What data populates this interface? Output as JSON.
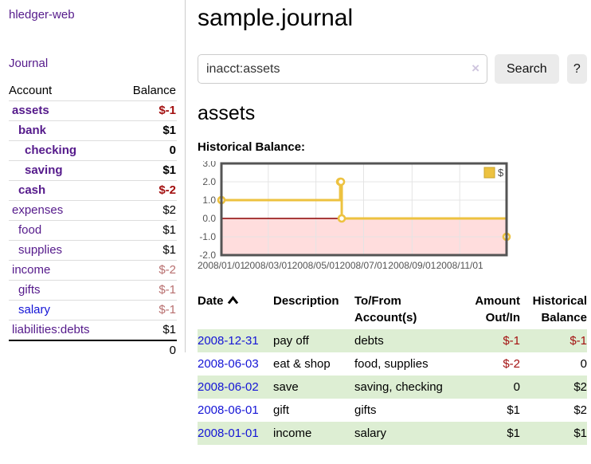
{
  "app": {
    "brand": "hledger-web",
    "nav_journal": "Journal"
  },
  "sidebar": {
    "headers": {
      "account": "Account",
      "balance": "Balance"
    },
    "accounts": [
      {
        "name": "assets",
        "level": 0,
        "bold": true,
        "balance": "$-1",
        "balance_style": "neg-strong",
        "link_color": "purple"
      },
      {
        "name": "bank",
        "level": 1,
        "bold": true,
        "balance": "$1",
        "balance_style": "pos",
        "link_color": "purple"
      },
      {
        "name": "checking",
        "level": 2,
        "bold": true,
        "balance": "0",
        "balance_style": "pos",
        "link_color": "purple"
      },
      {
        "name": "saving",
        "level": 2,
        "bold": true,
        "balance": "$1",
        "balance_style": "pos",
        "link_color": "purple"
      },
      {
        "name": "cash",
        "level": 1,
        "bold": true,
        "balance": "$-2",
        "balance_style": "neg-strong",
        "link_color": "purple"
      },
      {
        "name": "expenses",
        "level": 0,
        "bold": false,
        "balance": "$2",
        "balance_style": "pos",
        "link_color": "purple"
      },
      {
        "name": "food",
        "level": 1,
        "bold": false,
        "balance": "$1",
        "balance_style": "pos",
        "link_color": "purple"
      },
      {
        "name": "supplies",
        "level": 1,
        "bold": false,
        "balance": "$1",
        "balance_style": "pos",
        "link_color": "purple"
      },
      {
        "name": "income",
        "level": 0,
        "bold": false,
        "balance": "$-2",
        "balance_style": "neg-soft",
        "link_color": "purple"
      },
      {
        "name": "gifts",
        "level": 1,
        "bold": false,
        "balance": "$-1",
        "balance_style": "neg-soft",
        "link_color": "purple"
      },
      {
        "name": "salary",
        "level": 1,
        "bold": false,
        "balance": "$-1",
        "balance_style": "neg-soft",
        "link_color": "blue"
      },
      {
        "name": "liabilities:debts",
        "level": 0,
        "bold": false,
        "balance": "$1",
        "balance_style": "pos",
        "link_color": "purple"
      }
    ],
    "total": "0"
  },
  "header": {
    "title": "sample.journal"
  },
  "search": {
    "value": "inacct:assets",
    "clear_icon": "×",
    "button_label": "Search",
    "help_label": "?"
  },
  "account_page": {
    "heading": "assets",
    "chart_label": "Historical Balance:"
  },
  "chart_data": {
    "type": "line",
    "step": true,
    "title": "Historical Balance of assets",
    "series": [
      {
        "name": "$",
        "color": "#edc240",
        "points": [
          [
            "2008-01-01",
            1
          ],
          [
            "2008-06-01",
            2
          ],
          [
            "2008-06-02",
            2
          ],
          [
            "2008-06-03",
            0
          ],
          [
            "2008-12-31",
            -1
          ]
        ]
      }
    ],
    "xlim": [
      "2008-01-01",
      "2008-12-31"
    ],
    "ylim": [
      -2,
      3
    ],
    "x_ticks": [
      "2008/01/01",
      "2008/03/01",
      "2008/05/01",
      "2008/07/01",
      "2008/09/01",
      "2008/11/01"
    ],
    "y_ticks": [
      3.0,
      2.0,
      1.0,
      0.0,
      -1.0,
      -2.0
    ],
    "grid": true,
    "negative_region_color": "#ffdddd",
    "zero_line_color": "#8b0000",
    "gridline_color": "#e4e4e4",
    "border_color": "#545454",
    "axis_text_color": "#545454",
    "legend": {
      "position": "top-right",
      "label": "$",
      "swatch_color": "#edc240",
      "swatch_border": "#c9a42e"
    }
  },
  "register": {
    "sort": "ascending",
    "columns": [
      {
        "line1": "Date",
        "line2": "",
        "align": "left",
        "sorted": true
      },
      {
        "line1": "Description",
        "line2": "",
        "align": "left",
        "sorted": false
      },
      {
        "line1": "To/From",
        "line2": "Account(s)",
        "align": "left",
        "sorted": false
      },
      {
        "line1": "Amount",
        "line2": "Out/In",
        "align": "right",
        "sorted": false
      },
      {
        "line1": "Historical",
        "line2": "Balance",
        "align": "right",
        "sorted": false
      }
    ],
    "rows": [
      {
        "date": "2008-12-31",
        "description": "pay off",
        "accounts": "debts",
        "amount": "$-1",
        "amount_style": "neg",
        "balance": "$-1",
        "balance_style": "neg",
        "shaded": true
      },
      {
        "date": "2008-06-03",
        "description": "eat & shop",
        "accounts": "food, supplies",
        "amount": "$-2",
        "amount_style": "neg",
        "balance": "0",
        "balance_style": "pos",
        "shaded": false
      },
      {
        "date": "2008-06-02",
        "description": "save",
        "accounts": "saving, checking",
        "amount": "0",
        "amount_style": "pos",
        "balance": "$2",
        "balance_style": "pos",
        "shaded": true
      },
      {
        "date": "2008-06-01",
        "description": "gift",
        "accounts": "gifts",
        "amount": "$1",
        "amount_style": "pos",
        "balance": "$2",
        "balance_style": "pos",
        "shaded": false
      },
      {
        "date": "2008-01-01",
        "description": "income",
        "accounts": "salary",
        "amount": "$1",
        "amount_style": "pos",
        "balance": "$1",
        "balance_style": "pos",
        "shaded": true
      }
    ]
  }
}
